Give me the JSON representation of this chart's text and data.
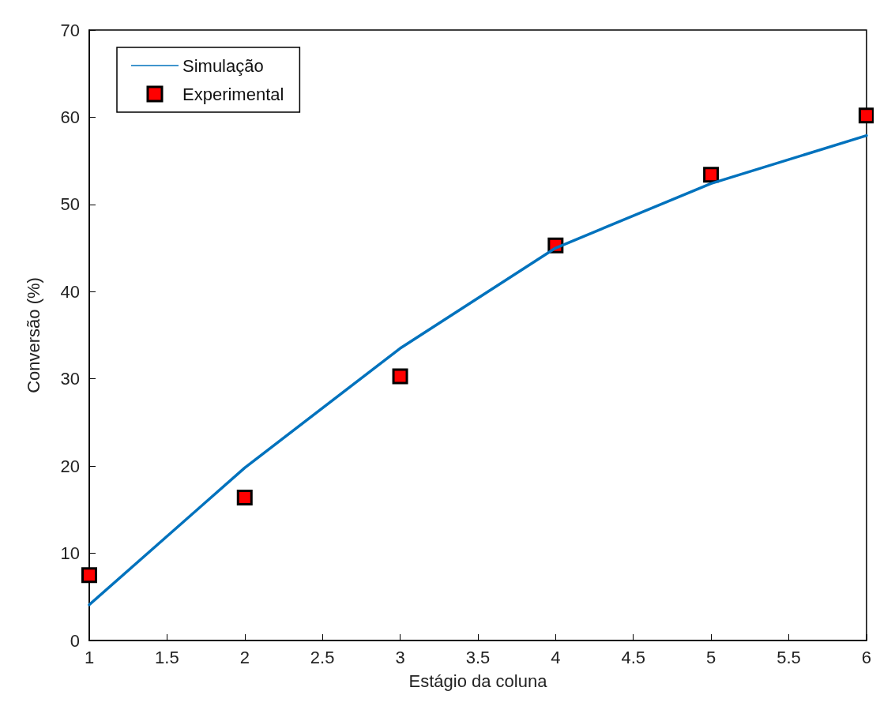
{
  "chart_data": {
    "type": "line",
    "xlabel": "Estágio da coluna",
    "ylabel": "Conversão (%)",
    "xlim": [
      1,
      6
    ],
    "xticks": [
      1,
      1.5,
      2,
      2.5,
      3,
      3.5,
      4,
      4.5,
      5,
      5.5,
      6
    ],
    "ylim": [
      0,
      70
    ],
    "yticks": [
      0,
      10,
      20,
      30,
      40,
      50,
      60,
      70
    ],
    "grid": false,
    "legend": "top left",
    "x": [
      1,
      2,
      3,
      4,
      5,
      6
    ],
    "series": [
      {
        "name": "Simulação",
        "color": "#0072bd",
        "marker": "none",
        "line_style": "solid",
        "values": [
          4.1,
          19.8,
          33.5,
          45.0,
          52.4,
          57.9
        ]
      },
      {
        "name": "Experimental",
        "type": "scatter",
        "color": "#ff0000",
        "marker": "square",
        "values": [
          7.5,
          16.4,
          30.3,
          45.3,
          53.4,
          60.2
        ]
      }
    ]
  }
}
